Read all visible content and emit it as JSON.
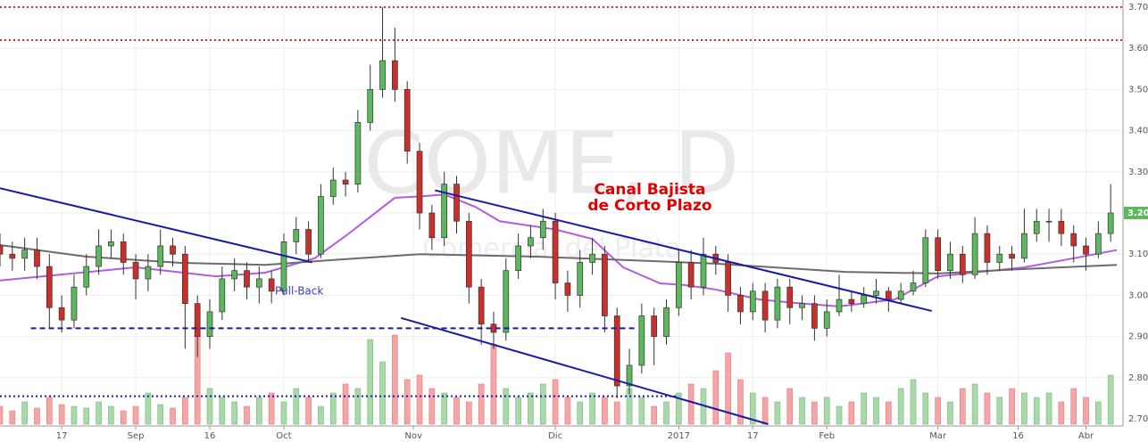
{
  "chart_data": {
    "type": "candlestick",
    "watermark": "COME, D",
    "watermark_sub": "Comercial del Plata",
    "annotations": [
      "Canal Bajista",
      "de Corto Plazo",
      "Pull-Back"
    ],
    "xlim": [
      0,
      182
    ],
    "ylim": [
      2.7,
      3.7
    ],
    "xticks": [
      {
        "value": 10,
        "label": "17"
      },
      {
        "value": 22,
        "label": "Sep"
      },
      {
        "value": 34,
        "label": "16"
      },
      {
        "value": 46,
        "label": "Oct"
      },
      {
        "value": 67,
        "label": "Nov"
      },
      {
        "value": 90,
        "label": "Dic"
      },
      {
        "value": 110,
        "label": "2017"
      },
      {
        "value": 122,
        "label": "17"
      },
      {
        "value": 134,
        "label": "Feb"
      },
      {
        "value": 152,
        "label": "Mar"
      },
      {
        "value": 165,
        "label": "16"
      },
      {
        "value": 176,
        "label": "Abr"
      }
    ],
    "yticks": [
      {
        "value": 2.7,
        "label": "2.70"
      },
      {
        "value": 2.8,
        "label": "2.80"
      },
      {
        "value": 2.9,
        "label": "2.90"
      },
      {
        "value": 3.0,
        "label": "3.00"
      },
      {
        "value": 3.1,
        "label": "3.10"
      },
      {
        "value": 3.2,
        "label": "3.20"
      },
      {
        "value": 3.3,
        "label": "3.30"
      },
      {
        "value": 3.4,
        "label": "3.40"
      },
      {
        "value": 3.5,
        "label": "3.50"
      },
      {
        "value": 3.6,
        "label": "3.60"
      },
      {
        "value": 3.7,
        "label": "3.70"
      }
    ],
    "grid": true,
    "up_color": "#5cb85c",
    "down_color": "#c9302c",
    "up_volume_color": "#a9d9a9",
    "down_volume_color": "#f4a6a6",
    "x": [
      0,
      2,
      4,
      6,
      8,
      10,
      12,
      14,
      16,
      18,
      20,
      22,
      24,
      26,
      28,
      30,
      32,
      34,
      36,
      38,
      40,
      42,
      44,
      46,
      48,
      50,
      52,
      54,
      56,
      58,
      60,
      62,
      64,
      66,
      68,
      70,
      72,
      74,
      76,
      78,
      80,
      82,
      84,
      86,
      88,
      90,
      92,
      94,
      96,
      98,
      100,
      102,
      104,
      106,
      108,
      110,
      112,
      114,
      116,
      118,
      120,
      122,
      124,
      126,
      128,
      130,
      132,
      134,
      136,
      138,
      140,
      142,
      144,
      146,
      148,
      150,
      152,
      154,
      156,
      158,
      160,
      162,
      164,
      166,
      168,
      170,
      172,
      174,
      176,
      178,
      180
    ],
    "open": [
      3.12,
      3.1,
      3.09,
      3.11,
      3.07,
      2.97,
      2.94,
      3.02,
      3.07,
      3.12,
      3.13,
      3.08,
      3.04,
      3.07,
      3.12,
      3.1,
      2.98,
      2.9,
      2.96,
      3.04,
      3.06,
      3.02,
      3.04,
      3.01,
      3.13,
      3.16,
      3.1,
      3.24,
      3.28,
      3.27,
      3.42,
      3.5,
      3.57,
      3.5,
      3.35,
      3.2,
      3.14,
      3.27,
      3.18,
      3.02,
      2.93,
      2.91,
      3.06,
      3.12,
      3.14,
      3.18,
      3.03,
      3.0,
      3.08,
      3.1,
      2.95,
      2.78,
      2.83,
      2.95,
      2.9,
      2.97,
      3.08,
      3.02,
      3.1,
      3.08,
      3.0,
      2.96,
      3.01,
      2.94,
      3.02,
      2.97,
      2.98,
      2.92,
      2.96,
      2.99,
      2.98,
      3.0,
      3.01,
      2.99,
      3.01,
      3.03,
      3.14,
      3.06,
      3.1,
      3.05,
      3.15,
      3.08,
      3.1,
      3.09,
      3.15,
      3.18,
      3.18,
      3.15,
      3.12,
      3.1,
      3.15
    ],
    "high": [
      3.15,
      3.13,
      3.14,
      3.14,
      3.1,
      3.0,
      3.05,
      3.1,
      3.16,
      3.16,
      3.15,
      3.1,
      3.1,
      3.16,
      3.14,
      3.12,
      3.0,
      2.99,
      3.07,
      3.09,
      3.08,
      3.07,
      3.06,
      3.15,
      3.19,
      3.18,
      3.27,
      3.31,
      3.3,
      3.45,
      3.56,
      3.7,
      3.65,
      3.52,
      3.37,
      3.22,
      3.3,
      3.29,
      3.2,
      3.04,
      2.96,
      3.09,
      3.15,
      3.17,
      3.21,
      3.2,
      3.06,
      3.11,
      3.14,
      3.12,
      2.97,
      2.87,
      2.98,
      2.97,
      2.99,
      3.11,
      3.11,
      3.14,
      3.12,
      3.1,
      3.02,
      3.03,
      3.03,
      3.04,
      3.04,
      3.0,
      3.0,
      2.99,
      3.05,
      3.01,
      3.02,
      3.04,
      3.02,
      3.03,
      3.06,
      3.16,
      3.16,
      3.13,
      3.12,
      3.19,
      3.17,
      3.12,
      3.12,
      3.21,
      3.21,
      3.21,
      3.21,
      3.17,
      3.14,
      3.18,
      3.27
    ],
    "low": [
      3.07,
      3.06,
      3.06,
      3.04,
      2.92,
      2.91,
      2.92,
      3.0,
      3.05,
      3.09,
      3.05,
      2.99,
      3.01,
      3.05,
      3.07,
      2.87,
      2.85,
      2.87,
      2.94,
      3.01,
      2.99,
      2.98,
      2.98,
      3.0,
      3.1,
      3.08,
      3.09,
      3.22,
      3.24,
      3.25,
      3.4,
      3.48,
      3.47,
      3.32,
      3.16,
      3.11,
      3.12,
      3.15,
      2.98,
      2.88,
      2.87,
      2.89,
      3.04,
      3.09,
      3.11,
      2.99,
      2.96,
      2.97,
      3.05,
      2.91,
      2.75,
      2.76,
      2.81,
      2.83,
      2.88,
      2.95,
      2.99,
      3.0,
      3.05,
      2.96,
      2.93,
      2.94,
      2.91,
      2.92,
      2.93,
      2.94,
      2.89,
      2.9,
      2.95,
      2.96,
      2.97,
      2.98,
      2.96,
      2.98,
      3.0,
      3.02,
      3.04,
      3.04,
      3.03,
      3.04,
      3.05,
      3.06,
      3.06,
      3.08,
      3.13,
      3.13,
      3.12,
      3.08,
      3.06,
      3.09,
      3.13
    ],
    "close": [
      3.1,
      3.09,
      3.11,
      3.07,
      2.97,
      2.94,
      3.02,
      3.07,
      3.12,
      3.13,
      3.08,
      3.04,
      3.07,
      3.12,
      3.1,
      2.98,
      2.9,
      2.96,
      3.04,
      3.06,
      3.02,
      3.04,
      3.01,
      3.13,
      3.16,
      3.1,
      3.24,
      3.28,
      3.27,
      3.42,
      3.5,
      3.57,
      3.5,
      3.35,
      3.2,
      3.14,
      3.27,
      3.18,
      3.02,
      2.93,
      2.91,
      3.06,
      3.12,
      3.14,
      3.18,
      3.03,
      3.0,
      3.08,
      3.1,
      2.95,
      2.78,
      2.83,
      2.95,
      2.9,
      2.97,
      3.08,
      3.02,
      3.1,
      3.08,
      3.0,
      2.96,
      3.01,
      2.94,
      3.02,
      2.97,
      2.98,
      2.92,
      2.96,
      2.99,
      2.98,
      3.0,
      3.01,
      2.99,
      3.01,
      3.03,
      3.14,
      3.06,
      3.1,
      3.05,
      3.15,
      3.08,
      3.1,
      3.09,
      3.15,
      3.18,
      3.18,
      3.15,
      3.12,
      3.1,
      3.15,
      3.2
    ],
    "volume": [
      20,
      15,
      25,
      18,
      30,
      22,
      20,
      18,
      25,
      20,
      15,
      20,
      35,
      22,
      18,
      30,
      120,
      40,
      30,
      25,
      20,
      30,
      35,
      25,
      40,
      30,
      20,
      35,
      45,
      40,
      95,
      70,
      100,
      50,
      55,
      40,
      35,
      30,
      25,
      45,
      90,
      40,
      30,
      35,
      45,
      50,
      30,
      25,
      35,
      30,
      25,
      40,
      30,
      20,
      25,
      35,
      45,
      40,
      60,
      80,
      50,
      35,
      30,
      25,
      40,
      30,
      25,
      30,
      20,
      25,
      35,
      30,
      25,
      40,
      50,
      35,
      30,
      25,
      40,
      45,
      35,
      30,
      40,
      35,
      30,
      35,
      25,
      40,
      30,
      25,
      55
    ],
    "averages": [
      {
        "color": "#b45ce0",
        "x": [
          0,
          22,
          35,
          43,
          51,
          56,
          64,
          68,
          72,
          77,
          81,
          90,
          96,
          101,
          107,
          111,
          116,
          123,
          130,
          136,
          145,
          152,
          159,
          166,
          174,
          181
        ],
        "values": [
          3.036,
          3.068,
          3.046,
          3.055,
          3.09,
          3.144,
          3.237,
          3.24,
          3.245,
          3.215,
          3.18,
          3.16,
          3.137,
          3.068,
          3.029,
          3.025,
          3.014,
          2.99,
          2.98,
          2.973,
          2.99,
          3.046,
          3.057,
          3.068,
          3.09,
          3.11
        ]
      },
      {
        "color": "#6b6b6b",
        "x": [
          0,
          14,
          29,
          43,
          58,
          68,
          87,
          116,
          137,
          152,
          166,
          181
        ],
        "values": [
          3.122,
          3.094,
          3.079,
          3.074,
          3.09,
          3.1,
          3.094,
          3.077,
          3.057,
          3.053,
          3.064,
          3.074
        ]
      }
    ],
    "trendlines": [
      {
        "color": "#1a1aaa",
        "x": [
          0,
          50.6
        ],
        "values": [
          3.26,
          3.08
        ]
      },
      {
        "color": "#1a1aaa",
        "x": [
          70.5,
          151
        ],
        "values": [
          3.255,
          2.962
        ]
      },
      {
        "color": "#1a1aaa",
        "x": [
          65,
          124.5
        ],
        "values": [
          2.945,
          2.687
        ]
      }
    ],
    "levels": [
      {
        "value": 3.7,
        "color": "#d03030",
        "style": "dotted",
        "x": [
          0,
          182
        ]
      },
      {
        "value": 3.62,
        "color": "#d03030",
        "style": "dotted",
        "x": [
          0,
          182
        ]
      },
      {
        "value": 2.92,
        "color": "#1a1aaa",
        "style": "dashed",
        "x": [
          5,
          103
        ]
      },
      {
        "value": 2.755,
        "color": "#1a1aaa",
        "style": "dotted",
        "x": [
          0,
          110
        ]
      }
    ],
    "last_price": {
      "value": 3.2,
      "label": "3.20",
      "color": "#5cb85c"
    }
  }
}
